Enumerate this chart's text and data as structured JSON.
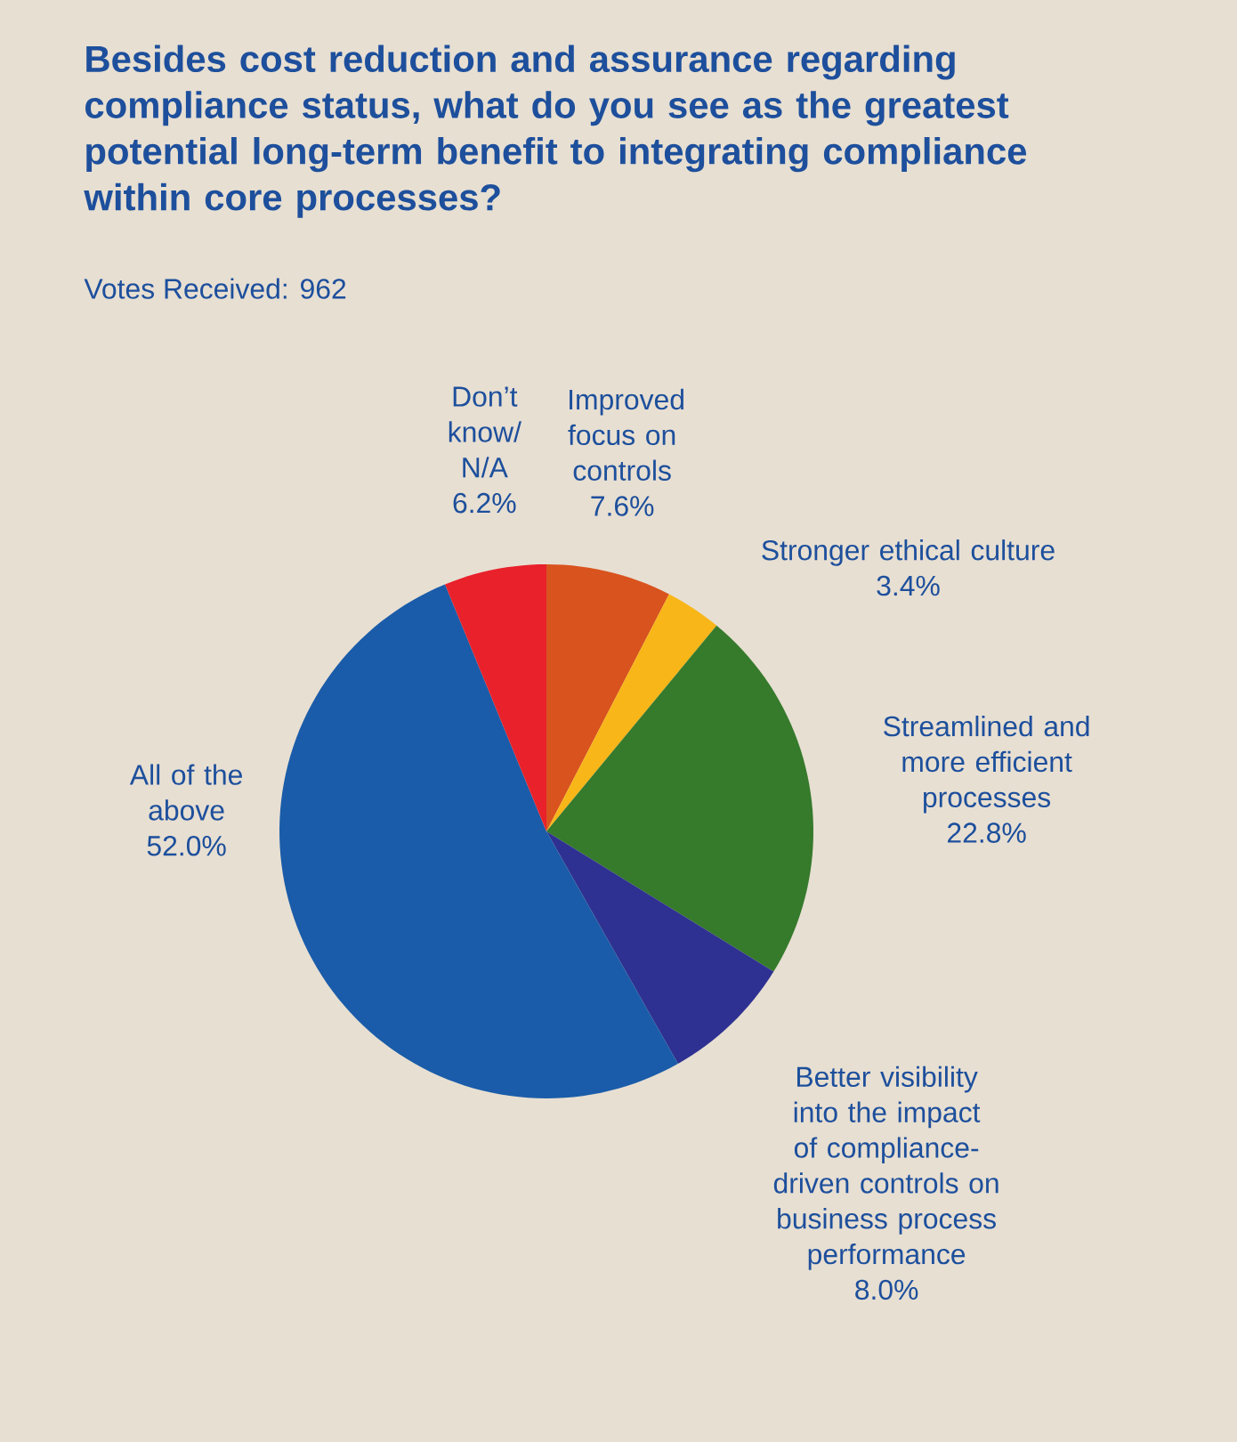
{
  "chart_data": {
    "type": "pie",
    "title": "Besides cost reduction and assurance regarding compliance status, what do you see as the greatest potential long-term benefit to integrating compliance within core processes?",
    "subtitle": "Votes Received: 962",
    "categories": [
      "Improved focus on controls",
      "Stronger ethical culture",
      "Streamlined and more efficient processes",
      "Better visibility into the impact of compliance- driven controls on business process performance",
      "All of the above",
      "Don’t know/ N/A"
    ],
    "values": [
      7.6,
      3.4,
      22.8,
      8.0,
      52.0,
      6.2
    ],
    "value_labels": [
      "7.6%",
      "3.4%",
      "22.8%",
      "8.0%",
      "52.0%",
      "6.2%"
    ],
    "colors": [
      "#d9531e",
      "#f8b619",
      "#367a2c",
      "#2e3191",
      "#1a5ca9",
      "#e8212b"
    ],
    "data_labels": true
  }
}
